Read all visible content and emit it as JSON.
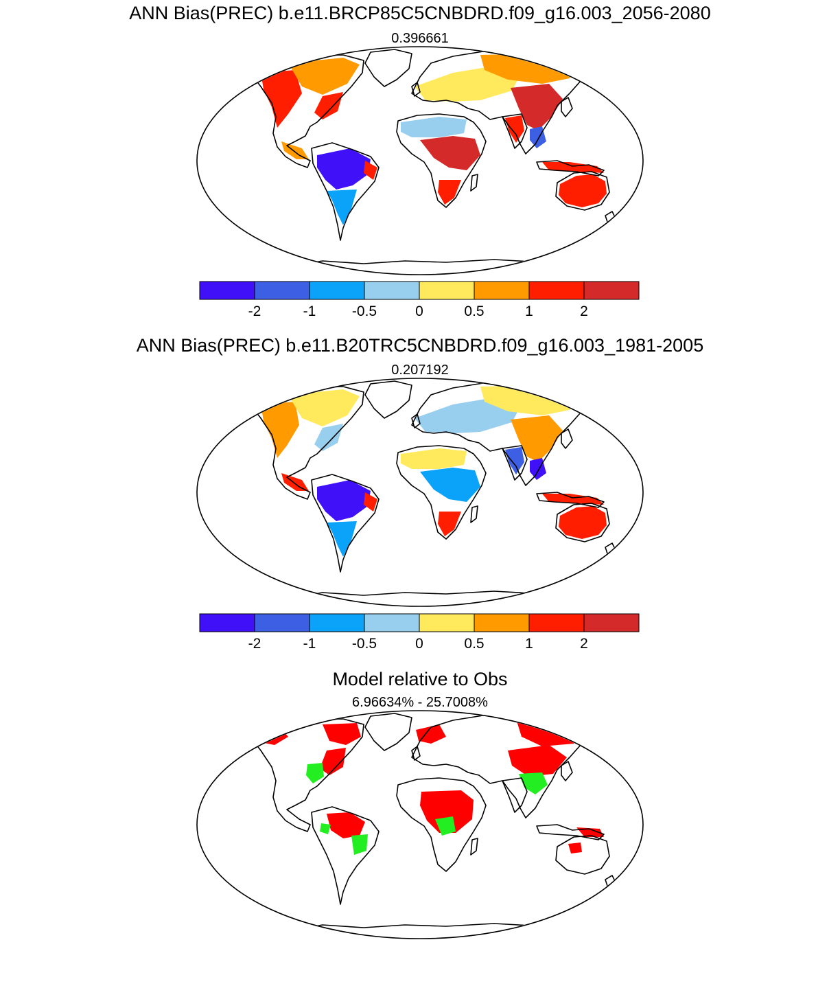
{
  "panels": [
    {
      "title": "ANN Bias(PREC) b.e11.BRCP85C5CNBDRD.f09_g16.003_2056-2080",
      "subtitle": "0.396661",
      "scenario": "future"
    },
    {
      "title": "ANN Bias(PREC) b.e11.B20TRC5CNBDRD.f09_g16.003_1981-2005",
      "subtitle": "0.207192",
      "scenario": "historical"
    },
    {
      "title": "Model relative to Obs",
      "subtitle": "6.96634% - 25.7008%",
      "scenario": "relative"
    }
  ],
  "colorbar": {
    "colors": [
      "#3f10f8",
      "#3d5fe3",
      "#0ba3f9",
      "#99cfee",
      "#ffea5e",
      "#ff9a00",
      "#ff1f00",
      "#d42a2a"
    ],
    "labels": [
      "-2",
      "-1",
      "-0.5",
      "0",
      "0.5",
      "1",
      "2"
    ]
  },
  "relative_colors": {
    "worse": "#ff0000",
    "better": "#22ee22"
  }
}
